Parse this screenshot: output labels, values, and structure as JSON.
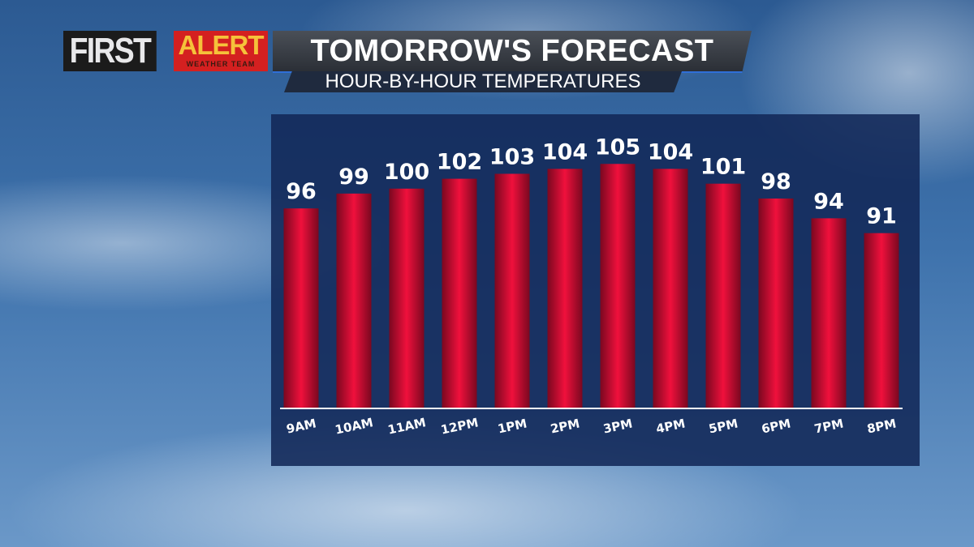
{
  "header": {
    "logo_first": "FIRST",
    "logo_alert": "ALERT",
    "logo_team": "WEATHER TEAM",
    "title": "TOMORROW'S FORECAST",
    "subtitle": "HOUR-BY-HOUR TEMPERATURES"
  },
  "chart_data": {
    "type": "bar",
    "title": "TOMORROW'S FORECAST",
    "subtitle": "HOUR-BY-HOUR TEMPERATURES",
    "categories": [
      "9AM",
      "10AM",
      "11AM",
      "12PM",
      "1PM",
      "2PM",
      "3PM",
      "4PM",
      "5PM",
      "6PM",
      "7PM",
      "8PM"
    ],
    "values": [
      96,
      99,
      100,
      102,
      103,
      104,
      105,
      104,
      101,
      98,
      94,
      91
    ],
    "data_labels": true,
    "grid": false,
    "bar_color": "#e0103a",
    "panel_color": "#122858"
  }
}
